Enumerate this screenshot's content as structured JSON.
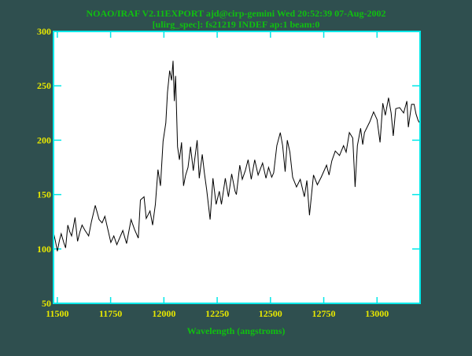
{
  "chart_data": {
    "type": "line",
    "title": "NOAO/IRAF V2.11EXPORT ajd@cirp-gemini Wed 20:52:39 07-Aug-2002",
    "subtitle": "[ulirg_spec]: fs21219 INDEF ap:1 beam:0",
    "xlabel": "Wavelength (angstroms)",
    "ylabel": "",
    "xlim": [
      11482,
      13202
    ],
    "ylim": [
      50,
      300
    ],
    "xticks": [
      11500,
      11750,
      12000,
      12250,
      12500,
      12750,
      13000
    ],
    "xtick_labels": [
      "11500",
      "11750",
      "12000",
      "12250",
      "12500",
      "12750",
      "13000"
    ],
    "yticks": [
      50,
      100,
      150,
      200,
      250,
      300
    ],
    "ytick_labels": [
      "50",
      "100",
      "150",
      "200",
      "250",
      "300"
    ],
    "grid": false,
    "colors": {
      "background": "#2f4f4f",
      "plot": "#ffffff",
      "frame": "#00e8e8",
      "ticklabels": "#e8e800",
      "titles": "#10c010",
      "line": "#000000"
    },
    "series": [
      {
        "name": "fs21219",
        "x": [
          11481,
          11490,
          11500,
          11510,
          11518,
          11530,
          11539,
          11549,
          11558,
          11567,
          11575,
          11583,
          11595,
          11605,
          11616,
          11630,
          11647,
          11660,
          11678,
          11696,
          11710,
          11723,
          11737,
          11751,
          11765,
          11779,
          11807,
          11825,
          11846,
          11862,
          11880,
          11890,
          11907,
          11917,
          11935,
          11947,
          11960,
          11972,
          11984,
          11996,
          12009,
          12017,
          12027,
          12036,
          12043,
          12049,
          12055,
          12064,
          12073,
          12083,
          12092,
          12102,
          12113,
          12125,
          12138,
          12156,
          12166,
          12180,
          12190,
          12201,
          12217,
          12230,
          12245,
          12260,
          12270,
          12288,
          12303,
          12318,
          12334,
          12340,
          12356,
          12368,
          12382,
          12395,
          12410,
          12426,
          12442,
          12463,
          12479,
          12491,
          12506,
          12515,
          12530,
          12546,
          12557,
          12569,
          12579,
          12591,
          12604,
          12622,
          12640,
          12659,
          12671,
          12683,
          12702,
          12720,
          12738,
          12763,
          12775,
          12788,
          12804,
          12824,
          12843,
          12855,
          12870,
          12886,
          12897,
          12908,
          12923,
          12933,
          12941,
          12966,
          12984,
          13000,
          13014,
          13027,
          13039,
          13054,
          13066,
          13076,
          13088,
          13106,
          13125,
          13140,
          13147,
          13162,
          13174,
          13183,
          13193,
          13200
        ],
        "y": [
          116,
          108,
          98,
          108,
          114,
          106,
          101,
          122,
          116,
          112,
          120,
          129,
          107,
          115,
          122,
          117,
          112,
          125,
          140,
          127,
          124,
          130,
          118,
          106,
          112,
          104,
          117,
          105,
          127,
          118,
          110,
          145,
          148,
          128,
          135,
          122,
          141,
          173,
          158,
          199,
          216,
          244,
          264,
          255,
          273,
          236,
          259,
          194,
          182,
          198,
          158,
          168,
          175,
          194,
          172,
          200,
          165,
          187,
          170,
          154,
          127,
          165,
          141,
          153,
          141,
          165,
          148,
          169,
          153,
          150,
          177,
          164,
          172,
          182,
          164,
          182,
          168,
          179,
          165,
          175,
          166,
          170,
          195,
          207,
          195,
          171,
          200,
          189,
          166,
          157,
          164,
          148,
          163,
          131,
          168,
          159,
          166,
          177,
          168,
          181,
          190,
          186,
          195,
          189,
          207,
          202,
          157,
          195,
          211,
          196,
          207,
          217,
          226,
          219,
          198,
          234,
          223,
          239,
          225,
          204,
          229,
          230,
          225,
          236,
          212,
          233,
          233,
          224,
          218,
          216
        ]
      }
    ]
  }
}
